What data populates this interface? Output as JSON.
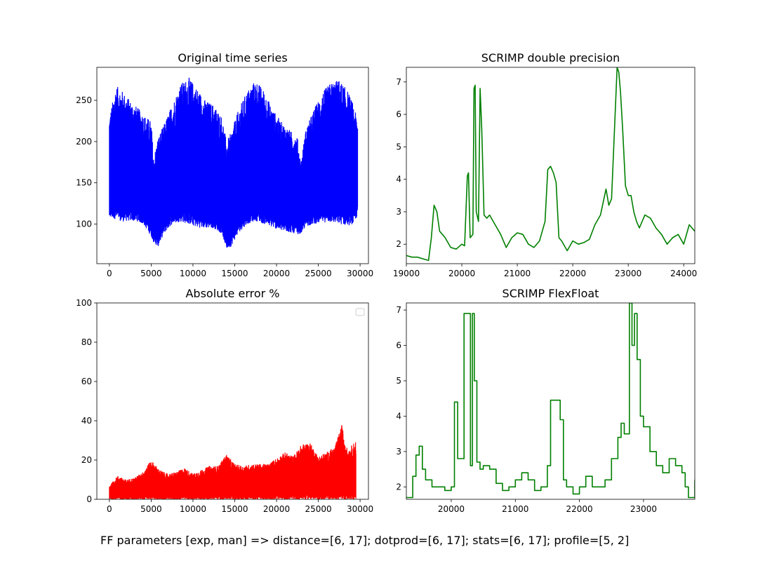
{
  "caption": "FF parameters [exp, man] => distance=[6, 17]; dotprod=[6, 17]; stats=[6, 17]; profile=[5, 2]",
  "chart_data": [
    {
      "id": "original",
      "type": "line",
      "title": "Original time series",
      "xlim": [
        -1500,
        31000
      ],
      "ylim": [
        52,
        290
      ],
      "xticks": [
        0,
        5000,
        10000,
        15000,
        20000,
        25000,
        30000
      ],
      "xtick_labels": [
        "0",
        "5000",
        "10000",
        "15000",
        "20000",
        "25000",
        "30000"
      ],
      "yticks": [
        100,
        150,
        200,
        250
      ],
      "ytick_labels": [
        "100",
        "150",
        "200",
        "250"
      ],
      "color": "#0000ff",
      "style": "band",
      "band": {
        "x": [
          0,
          800,
          1500,
          2500,
          3500,
          4200,
          5000,
          5300,
          5800,
          6500,
          7500,
          8500,
          9500,
          10500,
          11500,
          12500,
          13500,
          14000,
          14500,
          15500,
          16500,
          17500,
          18500,
          19500,
          20500,
          21500,
          22500,
          22900,
          23500,
          24500,
          25500,
          26500,
          27500,
          28500,
          29200,
          29700
        ],
        "upper": [
          230,
          268,
          262,
          250,
          240,
          232,
          225,
          180,
          205,
          220,
          245,
          270,
          278,
          265,
          250,
          245,
          230,
          200,
          210,
          240,
          262,
          275,
          262,
          240,
          225,
          215,
          205,
          175,
          215,
          240,
          260,
          272,
          275,
          262,
          245,
          225
        ],
        "lower": [
          107,
          106,
          103,
          104,
          103,
          98,
          85,
          78,
          72,
          88,
          100,
          103,
          100,
          96,
          95,
          95,
          88,
          70,
          72,
          90,
          100,
          104,
          100,
          96,
          92,
          90,
          88,
          88,
          97,
          100,
          102,
          102,
          100,
          98,
          100,
          110
        ]
      }
    },
    {
      "id": "scrimp-double",
      "type": "line",
      "title": "SCRIMP double precision",
      "xlim": [
        19000,
        24200
      ],
      "ylim": [
        1.4,
        7.45
      ],
      "xticks": [
        19000,
        20000,
        21000,
        22000,
        23000,
        24000
      ],
      "xtick_labels": [
        "19000",
        "20000",
        "21000",
        "22000",
        "23000",
        "24000"
      ],
      "yticks": [
        2,
        3,
        4,
        5,
        6,
        7
      ],
      "ytick_labels": [
        "2",
        "3",
        "4",
        "5",
        "6",
        "7"
      ],
      "color": "#008000",
      "style": "line",
      "x": [
        19000,
        19100,
        19200,
        19300,
        19400,
        19450,
        19500,
        19550,
        19600,
        19650,
        19700,
        19800,
        19900,
        20000,
        20050,
        20100,
        20120,
        20150,
        20200,
        20220,
        20240,
        20260,
        20300,
        20330,
        20360,
        20400,
        20450,
        20500,
        20600,
        20700,
        20800,
        20900,
        21000,
        21100,
        21200,
        21300,
        21400,
        21500,
        21550,
        21600,
        21650,
        21700,
        21750,
        21800,
        21900,
        22000,
        22100,
        22200,
        22300,
        22400,
        22500,
        22600,
        22650,
        22700,
        22800,
        22830,
        22860,
        22900,
        22950,
        23000,
        23050,
        23100,
        23150,
        23200,
        23300,
        23400,
        23500,
        23600,
        23700,
        23800,
        23900,
        24000,
        24100,
        24200
      ],
      "y": [
        1.65,
        1.6,
        1.6,
        1.55,
        1.5,
        2.2,
        3.2,
        3.0,
        2.4,
        2.3,
        2.2,
        1.9,
        1.85,
        2.0,
        1.95,
        4.1,
        4.2,
        2.2,
        2.3,
        6.8,
        6.9,
        3.0,
        2.7,
        6.8,
        5.5,
        2.9,
        2.8,
        2.9,
        2.6,
        2.3,
        1.9,
        2.2,
        2.35,
        2.3,
        2.0,
        1.9,
        2.1,
        2.7,
        4.3,
        4.4,
        4.2,
        3.9,
        2.2,
        2.1,
        1.8,
        2.1,
        2.0,
        2.05,
        2.15,
        2.6,
        2.9,
        3.7,
        3.2,
        3.4,
        7.45,
        7.3,
        6.7,
        5.5,
        3.8,
        3.5,
        3.5,
        3.0,
        2.7,
        2.5,
        2.9,
        2.8,
        2.5,
        2.3,
        2.0,
        2.2,
        2.3,
        2.0,
        2.6,
        2.4
      ]
    },
    {
      "id": "absolute-error",
      "type": "line",
      "title": "Absolute error %",
      "xlim": [
        -1500,
        31000
      ],
      "ylim": [
        0,
        100
      ],
      "xticks": [
        0,
        5000,
        10000,
        15000,
        20000,
        25000,
        30000
      ],
      "xtick_labels": [
        "0",
        "5000",
        "10000",
        "15000",
        "20000",
        "25000",
        "30000"
      ],
      "yticks": [
        0,
        20,
        40,
        60,
        80,
        100
      ],
      "ytick_labels": [
        "0",
        "20",
        "40",
        "60",
        "80",
        "100"
      ],
      "color": "#ff0000",
      "style": "band",
      "legend": "top-right",
      "band": {
        "x": [
          0,
          1000,
          2000,
          3000,
          4000,
          5000,
          6000,
          7000,
          8000,
          9000,
          10000,
          11000,
          12000,
          13000,
          14000,
          15000,
          16000,
          17000,
          18000,
          19000,
          20000,
          21000,
          22000,
          23000,
          24000,
          25000,
          26000,
          27000,
          27800,
          28500,
          29500
        ],
        "upper": [
          7,
          12,
          10,
          11,
          14,
          20,
          15,
          13,
          14,
          16,
          13,
          15,
          17,
          17,
          23,
          18,
          17,
          18,
          18,
          18,
          21,
          24,
          22,
          28,
          29,
          22,
          24,
          27,
          38,
          25,
          30
        ],
        "lower": [
          0,
          0,
          0,
          0,
          0,
          0,
          0,
          0,
          0,
          0,
          0,
          0,
          0,
          0,
          0,
          0,
          0,
          0,
          0,
          0,
          0,
          0,
          0,
          0,
          0,
          0,
          0,
          0,
          0,
          0,
          0
        ]
      }
    },
    {
      "id": "scrimp-flexfloat",
      "type": "line",
      "title": "SCRIMP FlexFloat",
      "xlim": [
        19300,
        23800
      ],
      "ylim": [
        1.65,
        7.2
      ],
      "xticks": [
        20000,
        21000,
        22000,
        23000
      ],
      "xtick_labels": [
        "20000",
        "21000",
        "22000",
        "23000"
      ],
      "yticks": [
        2,
        3,
        4,
        5,
        6,
        7
      ],
      "ytick_labels": [
        "2",
        "3",
        "4",
        "5",
        "6",
        "7"
      ],
      "color": "#008000",
      "style": "step",
      "x": [
        19300,
        19350,
        19400,
        19450,
        19500,
        19550,
        19600,
        19700,
        19800,
        19900,
        20000,
        20050,
        20100,
        20150,
        20200,
        20250,
        20300,
        20330,
        20360,
        20400,
        20450,
        20500,
        20600,
        20700,
        20800,
        20900,
        21000,
        21100,
        21200,
        21300,
        21400,
        21500,
        21550,
        21600,
        21700,
        21750,
        21800,
        21900,
        22000,
        22100,
        22200,
        22300,
        22400,
        22500,
        22600,
        22650,
        22700,
        22780,
        22820,
        22860,
        22900,
        22950,
        23000,
        23100,
        23200,
        23300,
        23400,
        23500,
        23600,
        23650,
        23700,
        23750,
        23800
      ],
      "y": [
        1.7,
        1.7,
        2.3,
        2.9,
        3.15,
        2.5,
        2.2,
        2.0,
        2.0,
        1.9,
        2.0,
        4.4,
        2.8,
        2.8,
        6.9,
        6.9,
        2.6,
        6.9,
        5.0,
        2.7,
        2.5,
        2.6,
        2.5,
        2.1,
        1.9,
        2.0,
        2.2,
        2.4,
        2.2,
        1.9,
        2.0,
        2.6,
        4.45,
        4.45,
        3.9,
        2.2,
        2.0,
        1.8,
        2.0,
        2.3,
        2.0,
        2.0,
        2.2,
        2.8,
        3.4,
        3.8,
        3.5,
        7.2,
        6.0,
        6.9,
        5.6,
        4.0,
        3.7,
        3.0,
        2.6,
        2.4,
        2.8,
        2.6,
        2.4,
        2.0,
        1.7,
        1.7,
        2.2
      ]
    }
  ]
}
